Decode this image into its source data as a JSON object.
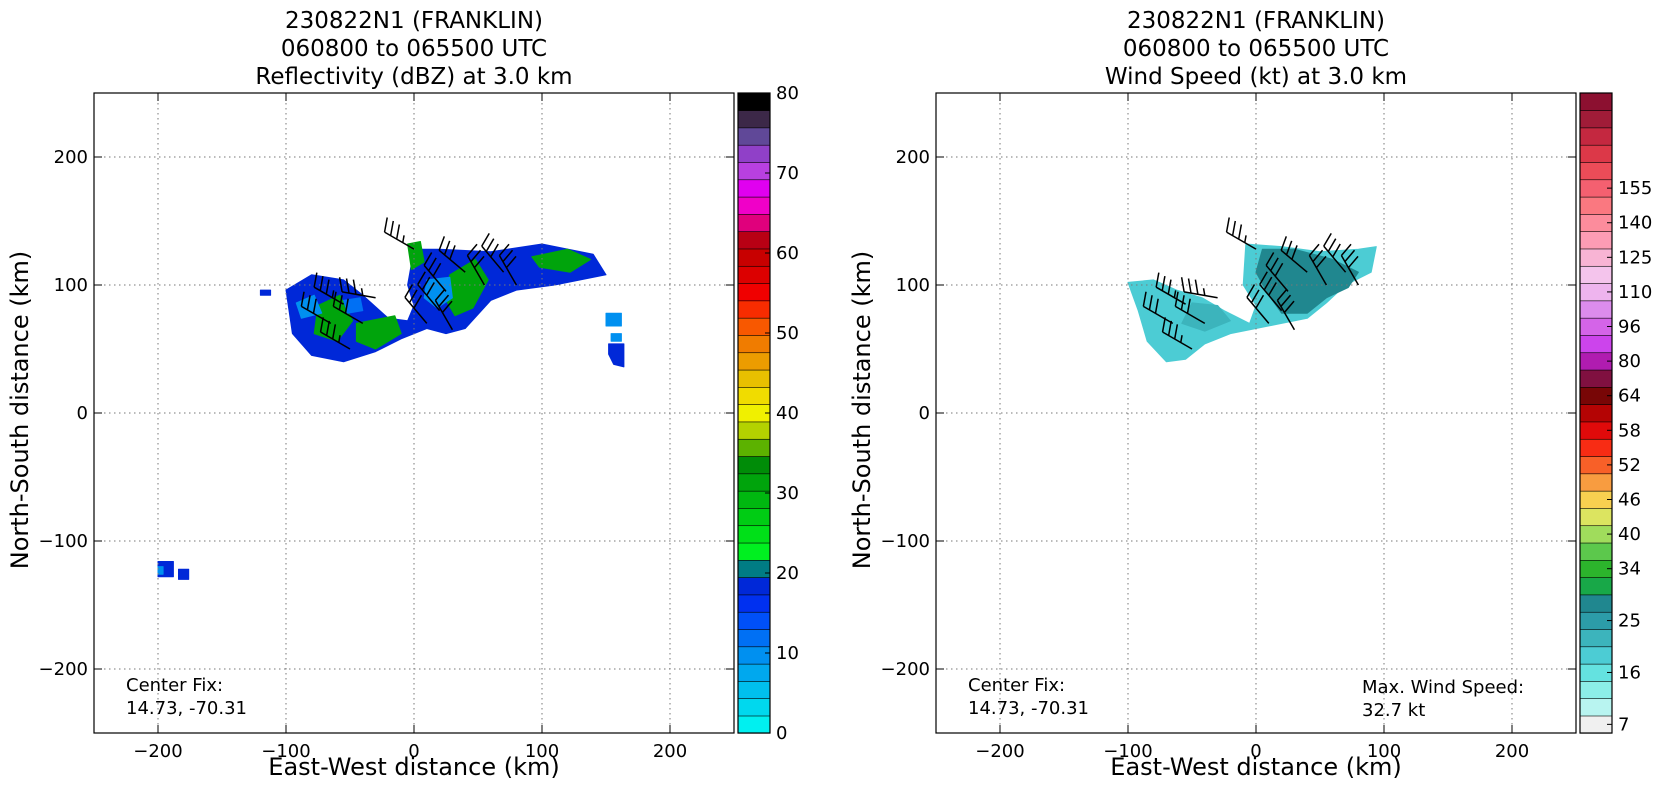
{
  "chart_data": [
    {
      "type": "heatmap",
      "title_lines": [
        "230822N1 (FRANKLIN)",
        "060800 to 065500 UTC",
        "Reflectivity (dBZ) at 3.0 km"
      ],
      "xlabel": "East-West distance (km)",
      "ylabel": "North-South distance (km)",
      "xlim": [
        -250,
        250
      ],
      "ylim": [
        -250,
        250
      ],
      "xticks": [
        -200,
        -100,
        0,
        100,
        200
      ],
      "yticks": [
        -200,
        -100,
        0,
        100,
        200
      ],
      "xtick_labels": [
        "−200",
        "−100",
        "0",
        "100",
        "200"
      ],
      "ytick_labels": [
        "−200",
        "−100",
        "0",
        "100",
        "200"
      ],
      "grid": true,
      "grid_style": "dotted",
      "annotation_lines": [
        "Center Fix:",
        "14.73, -70.31"
      ],
      "colorbar": {
        "min": 0,
        "max": 80,
        "step": 2.5,
        "tick_values": [
          0,
          10,
          20,
          30,
          40,
          50,
          60,
          70,
          80
        ],
        "tick_labels": [
          "0",
          "10",
          "20",
          "30",
          "40",
          "50",
          "60",
          "70",
          "80"
        ],
        "colors": [
          "#00f0f0",
          "#00d8ee",
          "#00c0ee",
          "#00a8ee",
          "#0090f0",
          "#0070f4",
          "#0050f8",
          "#0030f0",
          "#0028d8",
          "#007c84",
          "#00f020",
          "#00e018",
          "#00cc14",
          "#00b810",
          "#00a40c",
          "#008c08",
          "#5cb200",
          "#b4d200",
          "#f0f000",
          "#f0dc00",
          "#e8c000",
          "#ec9c00",
          "#f07c00",
          "#f85800",
          "#f82c00",
          "#f00000",
          "#dc0000",
          "#c80000",
          "#b80014",
          "#e0007c",
          "#f000c8",
          "#e000f0",
          "#b840e0",
          "#9040c8",
          "#604898",
          "#3c2848",
          "#000000"
        ]
      },
      "echo_regions": [
        {
          "dbz": 22,
          "points": [
            [
              -100,
              96
            ],
            [
              -80,
              108
            ],
            [
              -55,
              104
            ],
            [
              -40,
              92
            ],
            [
              -20,
              74
            ],
            [
              -5,
              72
            ],
            [
              0,
              84
            ],
            [
              -5,
              100
            ],
            [
              0,
              128
            ],
            [
              20,
              128
            ],
            [
              60,
              126
            ],
            [
              100,
              132
            ],
            [
              140,
              124
            ],
            [
              150,
              108
            ],
            [
              110,
              100
            ],
            [
              80,
              96
            ],
            [
              60,
              88
            ],
            [
              40,
              66
            ],
            [
              25,
              62
            ],
            [
              10,
              66
            ],
            [
              -10,
              58
            ],
            [
              -30,
              48
            ],
            [
              -55,
              40
            ],
            [
              -80,
              45
            ],
            [
              -95,
              62
            ]
          ]
        },
        {
          "dbz": 35,
          "points": [
            [
              -75,
              84
            ],
            [
              -58,
              92
            ],
            [
              -48,
              72
            ],
            [
              -60,
              56
            ],
            [
              -78,
              62
            ]
          ]
        },
        {
          "dbz": 36,
          "points": [
            [
              -45,
              70
            ],
            [
              -15,
              76
            ],
            [
              -10,
              62
            ],
            [
              -30,
              50
            ],
            [
              -45,
              56
            ]
          ]
        },
        {
          "dbz": 36,
          "points": [
            [
              28,
              108
            ],
            [
              48,
              120
            ],
            [
              58,
              104
            ],
            [
              46,
              82
            ],
            [
              32,
              76
            ],
            [
              24,
              90
            ]
          ]
        },
        {
          "dbz": 37,
          "points": [
            [
              92,
              122
            ],
            [
              120,
              128
            ],
            [
              138,
              120
            ],
            [
              122,
              110
            ],
            [
              98,
              114
            ]
          ]
        },
        {
          "dbz": 35,
          "points": [
            [
              -5,
              132
            ],
            [
              5,
              134
            ],
            [
              8,
              118
            ],
            [
              -2,
              112
            ]
          ]
        },
        {
          "dbz": 12,
          "points": [
            [
              10,
              104
            ],
            [
              28,
              106
            ],
            [
              30,
              90
            ],
            [
              18,
              82
            ],
            [
              8,
              90
            ]
          ]
        },
        {
          "dbz": 12,
          "points": [
            [
              -92,
              86
            ],
            [
              -78,
              92
            ],
            [
              -72,
              78
            ],
            [
              -88,
              74
            ]
          ]
        },
        {
          "dbz": 13,
          "points": [
            [
              -55,
              88
            ],
            [
              -42,
              90
            ],
            [
              -40,
              80
            ],
            [
              -52,
              78
            ]
          ]
        },
        {
          "dbz": 12,
          "points": [
            [
              150,
              78
            ],
            [
              162,
              78
            ],
            [
              162,
              68
            ],
            [
              150,
              68
            ]
          ]
        },
        {
          "dbz": 12,
          "points": [
            [
              154,
              62
            ],
            [
              162,
              62
            ],
            [
              162,
              56
            ],
            [
              154,
              56
            ]
          ]
        },
        {
          "dbz": 22,
          "points": [
            [
              152,
              54
            ],
            [
              164,
              54
            ],
            [
              164,
              36
            ],
            [
              156,
              38
            ],
            [
              152,
              46
            ]
          ]
        },
        {
          "dbz": 22,
          "points": [
            [
              -200,
              -116
            ],
            [
              -188,
              -116
            ],
            [
              -188,
              -128
            ],
            [
              -200,
              -128
            ]
          ]
        },
        {
          "dbz": 22,
          "points": [
            [
              -184,
              -122
            ],
            [
              -176,
              -122
            ],
            [
              -176,
              -130
            ],
            [
              -184,
              -130
            ]
          ]
        },
        {
          "dbz": 12,
          "points": [
            [
              -200,
              -120
            ],
            [
              -196,
              -120
            ],
            [
              -196,
              -126
            ],
            [
              -200,
              -126
            ]
          ]
        },
        {
          "dbz": 22,
          "points": [
            [
              -120,
              96
            ],
            [
              -112,
              96
            ],
            [
              -112,
              92
            ],
            [
              -120,
              92
            ]
          ]
        }
      ],
      "wind_barbs": [
        {
          "x": 0,
          "y": 128,
          "dir": 300,
          "speed": 25
        },
        {
          "x": 25,
          "y": 95,
          "dir": 320,
          "speed": 30
        },
        {
          "x": 40,
          "y": 110,
          "dir": 310,
          "speed": 30
        },
        {
          "x": 55,
          "y": 100,
          "dir": 330,
          "speed": 30
        },
        {
          "x": 70,
          "y": 110,
          "dir": 320,
          "speed": 30
        },
        {
          "x": 80,
          "y": 100,
          "dir": 330,
          "speed": 30
        },
        {
          "x": -30,
          "y": 90,
          "dir": 280,
          "speed": 25
        },
        {
          "x": -55,
          "y": 85,
          "dir": 300,
          "speed": 25
        },
        {
          "x": -40,
          "y": 70,
          "dir": 300,
          "speed": 30
        },
        {
          "x": -65,
          "y": 70,
          "dir": 300,
          "speed": 30
        },
        {
          "x": 10,
          "y": 70,
          "dir": 320,
          "speed": 30
        },
        {
          "x": 30,
          "y": 65,
          "dir": 330,
          "speed": 30
        },
        {
          "x": -50,
          "y": 50,
          "dir": 300,
          "speed": 25
        },
        {
          "x": 20,
          "y": 80,
          "dir": 320,
          "speed": 30
        }
      ]
    },
    {
      "type": "heatmap",
      "title_lines": [
        "230822N1 (FRANKLIN)",
        "060800 to 065500 UTC",
        "Wind Speed (kt) at 3.0 km"
      ],
      "xlabel": "East-West distance (km)",
      "ylabel": "North-South distance (km)",
      "xlim": [
        -250,
        250
      ],
      "ylim": [
        -250,
        250
      ],
      "xticks": [
        -200,
        -100,
        0,
        100,
        200
      ],
      "yticks": [
        -200,
        -100,
        0,
        100,
        200
      ],
      "xtick_labels": [
        "−200",
        "−100",
        "0",
        "100",
        "200"
      ],
      "ytick_labels": [
        "−200",
        "−100",
        "0",
        "100",
        "200"
      ],
      "grid": true,
      "grid_style": "dotted",
      "annotation_lines": [
        "Center Fix:",
        "14.73, -70.31"
      ],
      "max_wind_lines": [
        "Max. Wind Speed:",
        "32.7 kt"
      ],
      "colorbar": {
        "tick_labels": [
          "7",
          "16",
          "25",
          "34",
          "40",
          "46",
          "52",
          "58",
          "64",
          "80",
          "96",
          "110",
          "125",
          "140",
          "155"
        ],
        "tick_indices": [
          0,
          3,
          6,
          9,
          11,
          13,
          15,
          17,
          19,
          21,
          23,
          25,
          27,
          29,
          31
        ],
        "colors": [
          "#f0f0f0",
          "#b8f4f0",
          "#8ceee8",
          "#64e2e0",
          "#4cccd4",
          "#3cb4bc",
          "#2c9ca8",
          "#20878f",
          "#18a848",
          "#2cb42c",
          "#5cc84c",
          "#a0dc5c",
          "#dce460",
          "#f8d050",
          "#f89c40",
          "#f86028",
          "#f82c14",
          "#e00a0a",
          "#b40404",
          "#780606",
          "#801040",
          "#b01cb0",
          "#cc44ec",
          "#d464e8",
          "#dc8cec",
          "#eeb4ee",
          "#f4c4ec",
          "#f8b4d4",
          "#fc9cb4",
          "#fc8c9c",
          "#fa7880",
          "#f46070",
          "#ec4c58",
          "#dc3848",
          "#c42840",
          "#a01c38",
          "#8c1030"
        ]
      },
      "wind_regions": [
        {
          "kt": 19,
          "points": [
            [
              -100,
              102
            ],
            [
              -80,
              104
            ],
            [
              -62,
              96
            ],
            [
              -42,
              90
            ],
            [
              -25,
              80
            ],
            [
              -5,
              70
            ],
            [
              0,
              84
            ],
            [
              -10,
              100
            ],
            [
              -8,
              132
            ],
            [
              20,
              130
            ],
            [
              50,
              126
            ],
            [
              80,
              128
            ],
            [
              94,
              130
            ],
            [
              90,
              110
            ],
            [
              70,
              100
            ],
            [
              55,
              86
            ],
            [
              40,
              74
            ],
            [
              20,
              70
            ],
            [
              0,
              66
            ],
            [
              -20,
              62
            ],
            [
              -40,
              54
            ],
            [
              -55,
              42
            ],
            [
              -70,
              40
            ],
            [
              -85,
              56
            ],
            [
              -92,
              80
            ]
          ]
        },
        {
          "kt": 27,
          "points": [
            [
              5,
              128
            ],
            [
              30,
              128
            ],
            [
              60,
              120
            ],
            [
              80,
              110
            ],
            [
              72,
              98
            ],
            [
              55,
              90
            ],
            [
              40,
              78
            ],
            [
              20,
              78
            ],
            [
              10,
              92
            ],
            [
              0,
              110
            ]
          ]
        },
        {
          "kt": 23,
          "points": [
            [
              -50,
              86
            ],
            [
              -30,
              84
            ],
            [
              -20,
              72
            ],
            [
              -40,
              64
            ],
            [
              -58,
              70
            ]
          ]
        }
      ],
      "wind_barbs": [
        {
          "x": 0,
          "y": 128,
          "dir": 300,
          "speed": 25
        },
        {
          "x": 25,
          "y": 95,
          "dir": 320,
          "speed": 30
        },
        {
          "x": 40,
          "y": 110,
          "dir": 310,
          "speed": 30
        },
        {
          "x": 55,
          "y": 100,
          "dir": 330,
          "speed": 30
        },
        {
          "x": 70,
          "y": 110,
          "dir": 320,
          "speed": 30
        },
        {
          "x": 80,
          "y": 100,
          "dir": 330,
          "speed": 30
        },
        {
          "x": -30,
          "y": 90,
          "dir": 280,
          "speed": 25
        },
        {
          "x": -55,
          "y": 85,
          "dir": 300,
          "speed": 25
        },
        {
          "x": -40,
          "y": 70,
          "dir": 300,
          "speed": 30
        },
        {
          "x": -65,
          "y": 70,
          "dir": 300,
          "speed": 30
        },
        {
          "x": 10,
          "y": 70,
          "dir": 320,
          "speed": 30
        },
        {
          "x": 30,
          "y": 65,
          "dir": 330,
          "speed": 30
        },
        {
          "x": -50,
          "y": 50,
          "dir": 300,
          "speed": 25
        },
        {
          "x": 20,
          "y": 80,
          "dir": 320,
          "speed": 30
        }
      ]
    }
  ]
}
